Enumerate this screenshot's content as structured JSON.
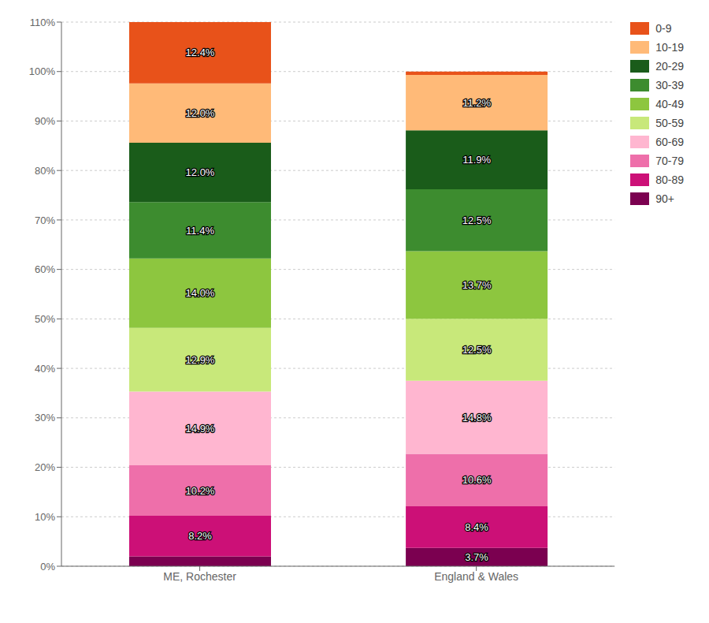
{
  "chart_data": {
    "type": "bar",
    "stacked": true,
    "data_labels": true,
    "categories": [
      "ME, Rochester",
      "England & Wales"
    ],
    "series": [
      {
        "name": "90+",
        "color": "#7B0050",
        "values": [
          2.0,
          3.7
        ],
        "value_labels": [
          null,
          "3.7%"
        ]
      },
      {
        "name": "80-89",
        "color": "#CC1077",
        "values": [
          8.2,
          8.4
        ],
        "value_labels": [
          "8.2%",
          "8.4%"
        ]
      },
      {
        "name": "70-79",
        "color": "#EE6FAA",
        "values": [
          10.2,
          10.6
        ],
        "value_labels": [
          "10.2%",
          "10.6%"
        ]
      },
      {
        "name": "60-69",
        "color": "#FFB6D0",
        "values": [
          14.9,
          14.8
        ],
        "value_labels": [
          "14.9%",
          "14.8%"
        ]
      },
      {
        "name": "50-59",
        "color": "#C8E87A",
        "values": [
          12.9,
          12.5
        ],
        "value_labels": [
          "12.9%",
          "12.5%"
        ]
      },
      {
        "name": "40-49",
        "color": "#8DC63F",
        "values": [
          14.0,
          13.7
        ],
        "value_labels": [
          "14.0%",
          "13.7%"
        ]
      },
      {
        "name": "30-39",
        "color": "#3D8C2F",
        "values": [
          11.4,
          12.5
        ],
        "value_labels": [
          "11.4%",
          "12.5%"
        ]
      },
      {
        "name": "20-29",
        "color": "#1A5C1A",
        "values": [
          12.0,
          11.9
        ],
        "value_labels": [
          "12.0%",
          "11.9%"
        ]
      },
      {
        "name": "10-19",
        "color": "#FFBA78",
        "values": [
          12.0,
          11.2
        ],
        "value_labels": [
          "12.0%",
          "11.2%"
        ]
      },
      {
        "name": "0-9",
        "color": "#E8521A",
        "values": [
          12.4,
          0.7
        ],
        "value_labels": [
          "12.4%",
          null
        ]
      }
    ],
    "ylim": [
      0,
      110
    ],
    "yticks": [
      {
        "value": 0,
        "label": "0%"
      },
      {
        "value": 10,
        "label": "10%"
      },
      {
        "value": 20,
        "label": "20%"
      },
      {
        "value": 30,
        "label": "30%"
      },
      {
        "value": 40,
        "label": "40%"
      },
      {
        "value": 50,
        "label": "50%"
      },
      {
        "value": 60,
        "label": "60%"
      },
      {
        "value": 70,
        "label": "70%"
      },
      {
        "value": 80,
        "label": "80%"
      },
      {
        "value": 90,
        "label": "90%"
      },
      {
        "value": 100,
        "label": "100%"
      },
      {
        "value": 110,
        "label": "110%"
      }
    ],
    "grid": true,
    "legend": "right"
  }
}
